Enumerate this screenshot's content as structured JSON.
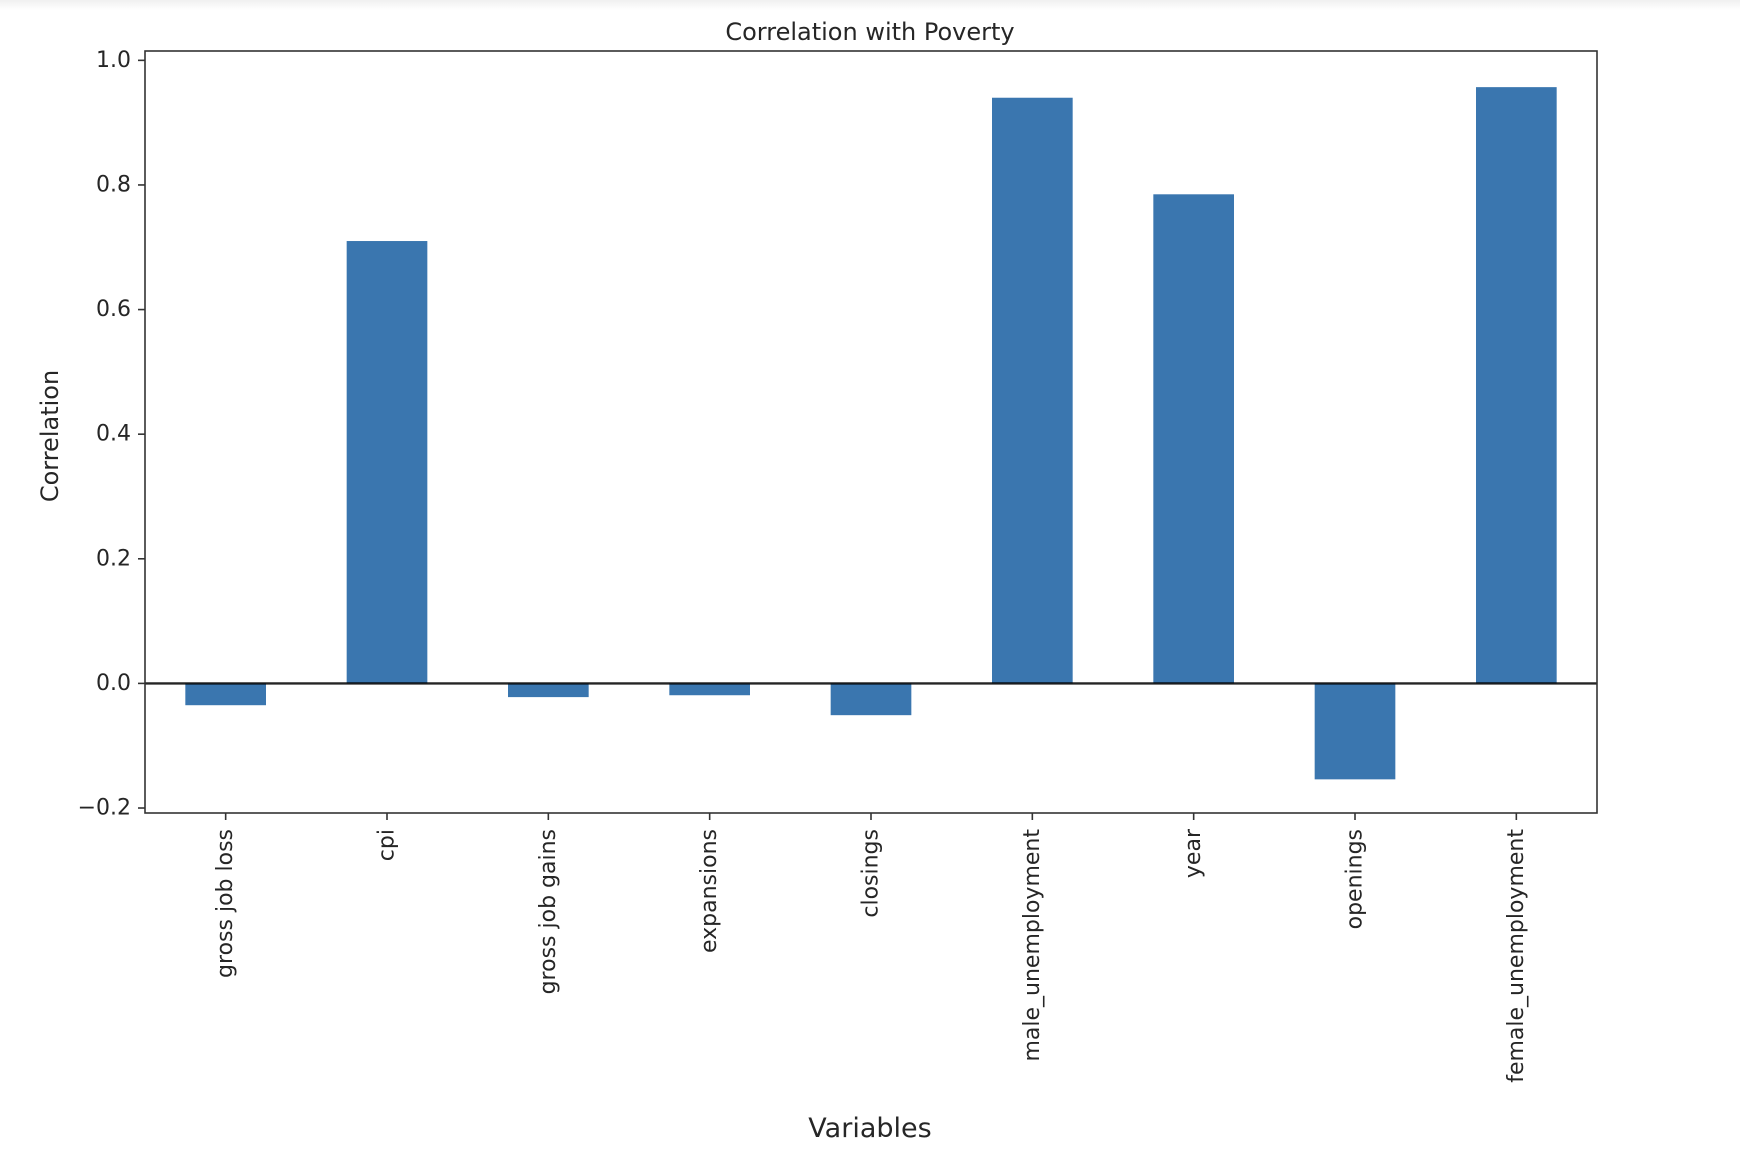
{
  "chart_data": {
    "type": "bar",
    "title": "Correlation with Poverty",
    "xlabel": "Variables",
    "ylabel": "Correlation",
    "categories": [
      "gross job loss",
      "cpi",
      "gross job gains",
      "expansions",
      "closings",
      "male_unemployment",
      "year",
      "openings",
      "female_unemployment"
    ],
    "values": [
      -0.035,
      0.71,
      -0.022,
      -0.019,
      -0.051,
      0.94,
      0.785,
      -0.154,
      0.957
    ],
    "ylim": [
      -0.208,
      1.015
    ],
    "yticks": [
      -0.2,
      0.0,
      0.2,
      0.4,
      0.6,
      0.8,
      1.0
    ],
    "ytick_labels": [
      "−0.2",
      "0.0",
      "0.2",
      "0.4",
      "0.6",
      "0.8",
      "1.0"
    ],
    "bar_color": "#3a76af",
    "zero_line_color": "#000000",
    "grid": false,
    "legend": "none"
  }
}
